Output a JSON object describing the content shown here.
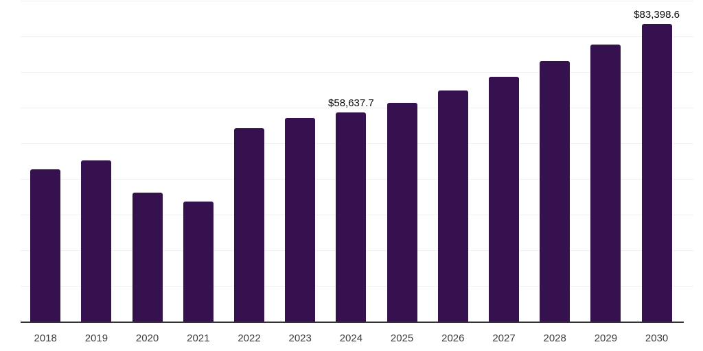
{
  "chart_data": {
    "type": "bar",
    "title": "",
    "xlabel": "",
    "ylabel": "",
    "categories": [
      "2018",
      "2019",
      "2020",
      "2021",
      "2022",
      "2023",
      "2024",
      "2025",
      "2026",
      "2027",
      "2028",
      "2029",
      "2030"
    ],
    "values": [
      42700,
      45200,
      36100,
      33600,
      54200,
      57200,
      58637.7,
      61400,
      64800,
      68700,
      73000,
      77700,
      83398.6
    ],
    "value_labels": [
      "",
      "",
      "",
      "",
      "",
      "",
      "$58,637.7",
      "",
      "",
      "",
      "",
      "",
      "$83,398.6"
    ],
    "ylim": [
      0,
      90000
    ],
    "y_gridline_step": 10000,
    "y_tick_labels_visible": false,
    "x_tick_labels_visible": true,
    "grid": "horizontal",
    "legend_position": "none",
    "colors": {
      "bar": "#351150",
      "axis_line": "#333333",
      "gridline": "#f0f0f2",
      "tick_label": "#3d3d3d",
      "value_label": "#0a0a0a",
      "background": "#ffffff"
    }
  }
}
